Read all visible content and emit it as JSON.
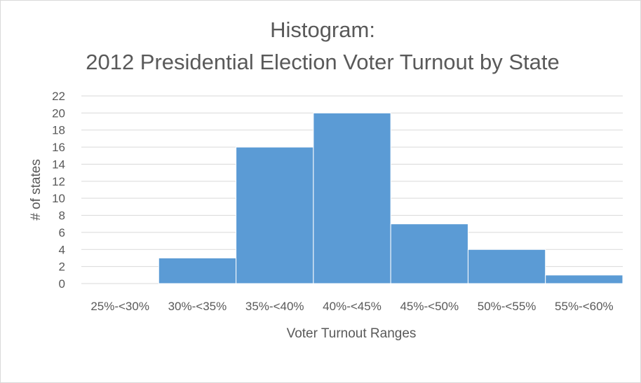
{
  "chart_data": {
    "type": "bar",
    "title_line1": "Histogram:",
    "title_line2": "2012 Presidential Election Voter Turnout by State",
    "xlabel": "Voter Turnout Ranges",
    "ylabel": "# of states",
    "categories": [
      "25%-<30%",
      "30%-<35%",
      "35%-<40%",
      "40%-<45%",
      "45%-<50%",
      "50%-<55%",
      "55%-<60%"
    ],
    "values": [
      0,
      3,
      16,
      20,
      7,
      4,
      1
    ],
    "ylim": [
      0,
      22
    ],
    "yticks": [
      0,
      2,
      4,
      6,
      8,
      10,
      12,
      14,
      16,
      18,
      20,
      22
    ],
    "grid": true,
    "bar_color": "#5b9bd5"
  }
}
